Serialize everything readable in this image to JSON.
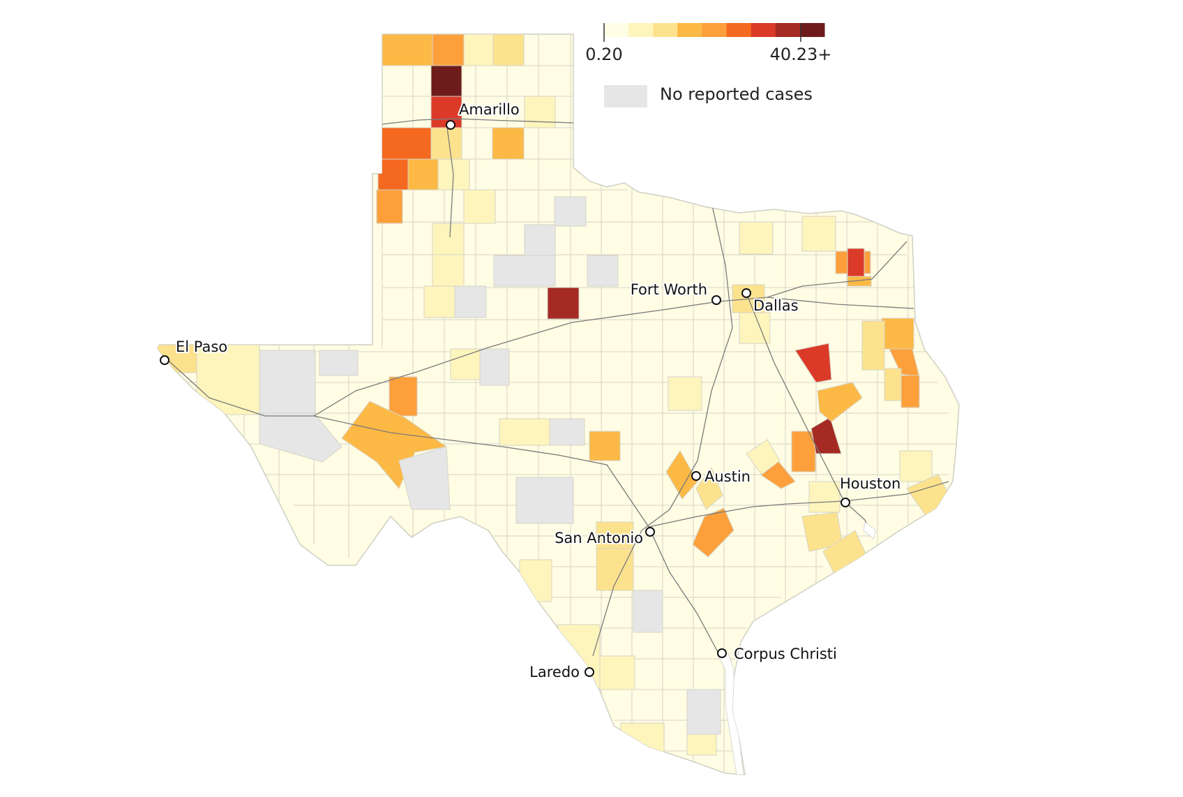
{
  "legend": {
    "min_label": "0.20",
    "max_label": "40.23+",
    "scale_colors": [
      "#fffde3",
      "#fef5bd",
      "#fde28e",
      "#fdb945",
      "#fda03c",
      "#f4691f",
      "#dc3a29",
      "#a52a24",
      "#6e1c1b"
    ],
    "no_data_label": "No reported cases",
    "no_data_color": "#e6e6e6"
  },
  "colors": {
    "base": "#fffde3",
    "county_border": "#d4d4c8",
    "highway": "#7a7a7a",
    "water": "#ffffff"
  },
  "cities": [
    {
      "name": "Amarillo"
    },
    {
      "name": "Fort Worth"
    },
    {
      "name": "Dallas"
    },
    {
      "name": "El Paso"
    },
    {
      "name": "Austin"
    },
    {
      "name": "Houston"
    },
    {
      "name": "San Antonio"
    },
    {
      "name": "Corpus Christi"
    },
    {
      "name": "Laredo"
    }
  ]
}
